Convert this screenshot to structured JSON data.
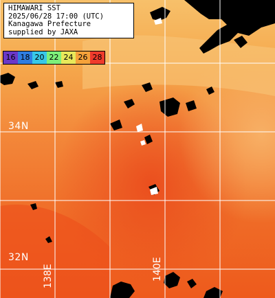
{
  "title": {
    "line1": "HIMAWARI SST",
    "line2": "2025/06/28 17:00 (UTC)",
    "line3": "Kanagawa Prefecture",
    "line4": "supplied by JAXA"
  },
  "scale": {
    "labels": [
      "16",
      "18",
      "20",
      "22",
      "24",
      "26",
      "28"
    ],
    "colors": [
      "#6a38c8",
      "#2f7de0",
      "#38c8e8",
      "#7ef07a",
      "#e8e85a",
      "#f5a23a",
      "#ef3b2c"
    ]
  },
  "grid": {
    "lat_labels": [
      "34N",
      "32N"
    ],
    "lon_labels": [
      "138E",
      "140E"
    ]
  },
  "colors": {
    "land": "#000000",
    "sst_cool": "#f5b060",
    "sst_warm": "#ef5a1e",
    "gridline": "#ffffff"
  }
}
